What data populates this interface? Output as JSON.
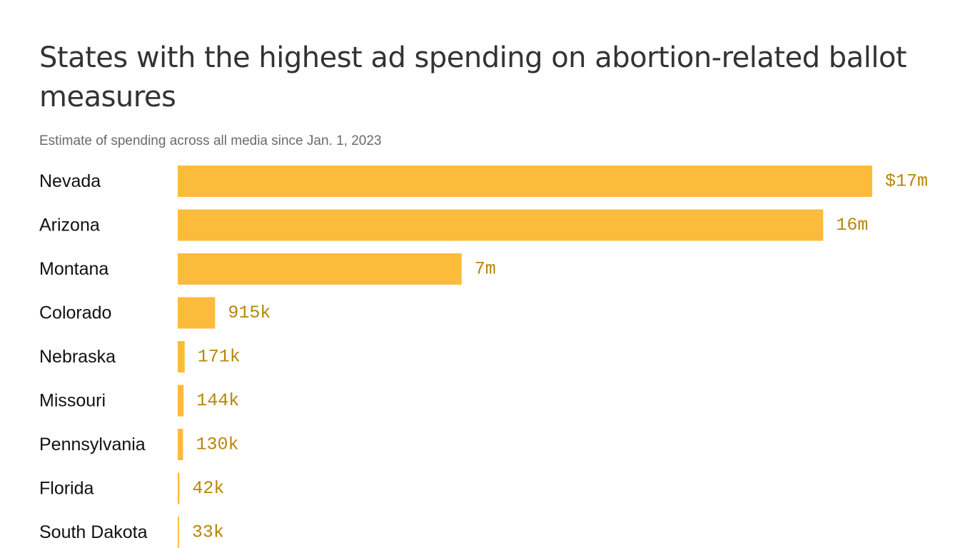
{
  "title": "States with the highest ad spending on abortion-related ballot measures",
  "subtitle": "Estimate of spending across all media since Jan. 1, 2023",
  "colors": {
    "bar": "#FDBB3B",
    "value_label": "#B8860B",
    "title": "#333333",
    "subtitle": "#6A6A6A"
  },
  "chart_data": {
    "type": "bar",
    "orientation": "horizontal",
    "title": "States with the highest ad spending on abortion-related ballot measures",
    "subtitle": "Estimate of spending across all media since Jan. 1, 2023",
    "categories": [
      "Nevada",
      "Arizona",
      "Montana",
      "Colorado",
      "Nebraska",
      "Missouri",
      "Pennsylvania",
      "Florida",
      "South Dakota"
    ],
    "values": [
      17000000,
      15800000,
      6950000,
      915000,
      171000,
      144000,
      130000,
      42000,
      33000
    ],
    "value_labels": [
      "$17m",
      "16m",
      "7m",
      "915k",
      "171k",
      "144k",
      "130k",
      "42k",
      "33k"
    ],
    "unit": "USD",
    "xlim": [
      0,
      17000000
    ],
    "grid": false,
    "legend": "none"
  }
}
